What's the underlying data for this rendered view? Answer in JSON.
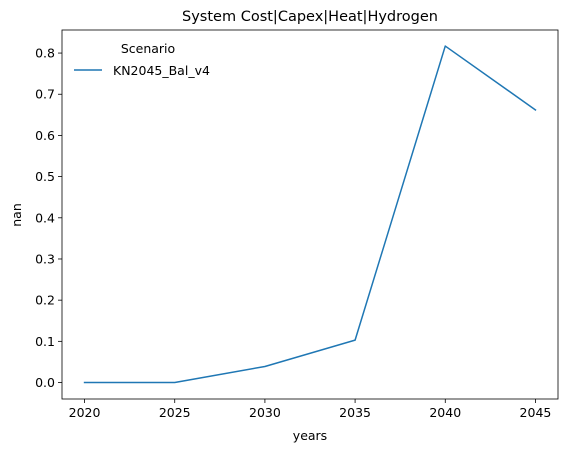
{
  "chart_data": {
    "type": "line",
    "title": "System Cost|Capex|Heat|Hydrogen",
    "xlabel": "years",
    "ylabel": "nan",
    "x": [
      2020,
      2025,
      2030,
      2035,
      2040,
      2045
    ],
    "xticks": [
      "2020",
      "2025",
      "2030",
      "2035",
      "2040",
      "2045"
    ],
    "yticks": [
      "0.0",
      "0.1",
      "0.2",
      "0.3",
      "0.4",
      "0.5",
      "0.6",
      "0.7",
      "0.8"
    ],
    "xlim": [
      2018.75,
      2046.25
    ],
    "ylim": [
      -0.04,
      0.856
    ],
    "grid": false,
    "legend": {
      "title": "Scenario",
      "placement": "top-left"
    },
    "series": [
      {
        "name": "KN2045_Bal_v4",
        "color": "#1f77b4",
        "values": [
          0.0,
          0.0,
          0.039,
          0.103,
          0.817,
          0.662
        ]
      }
    ]
  }
}
